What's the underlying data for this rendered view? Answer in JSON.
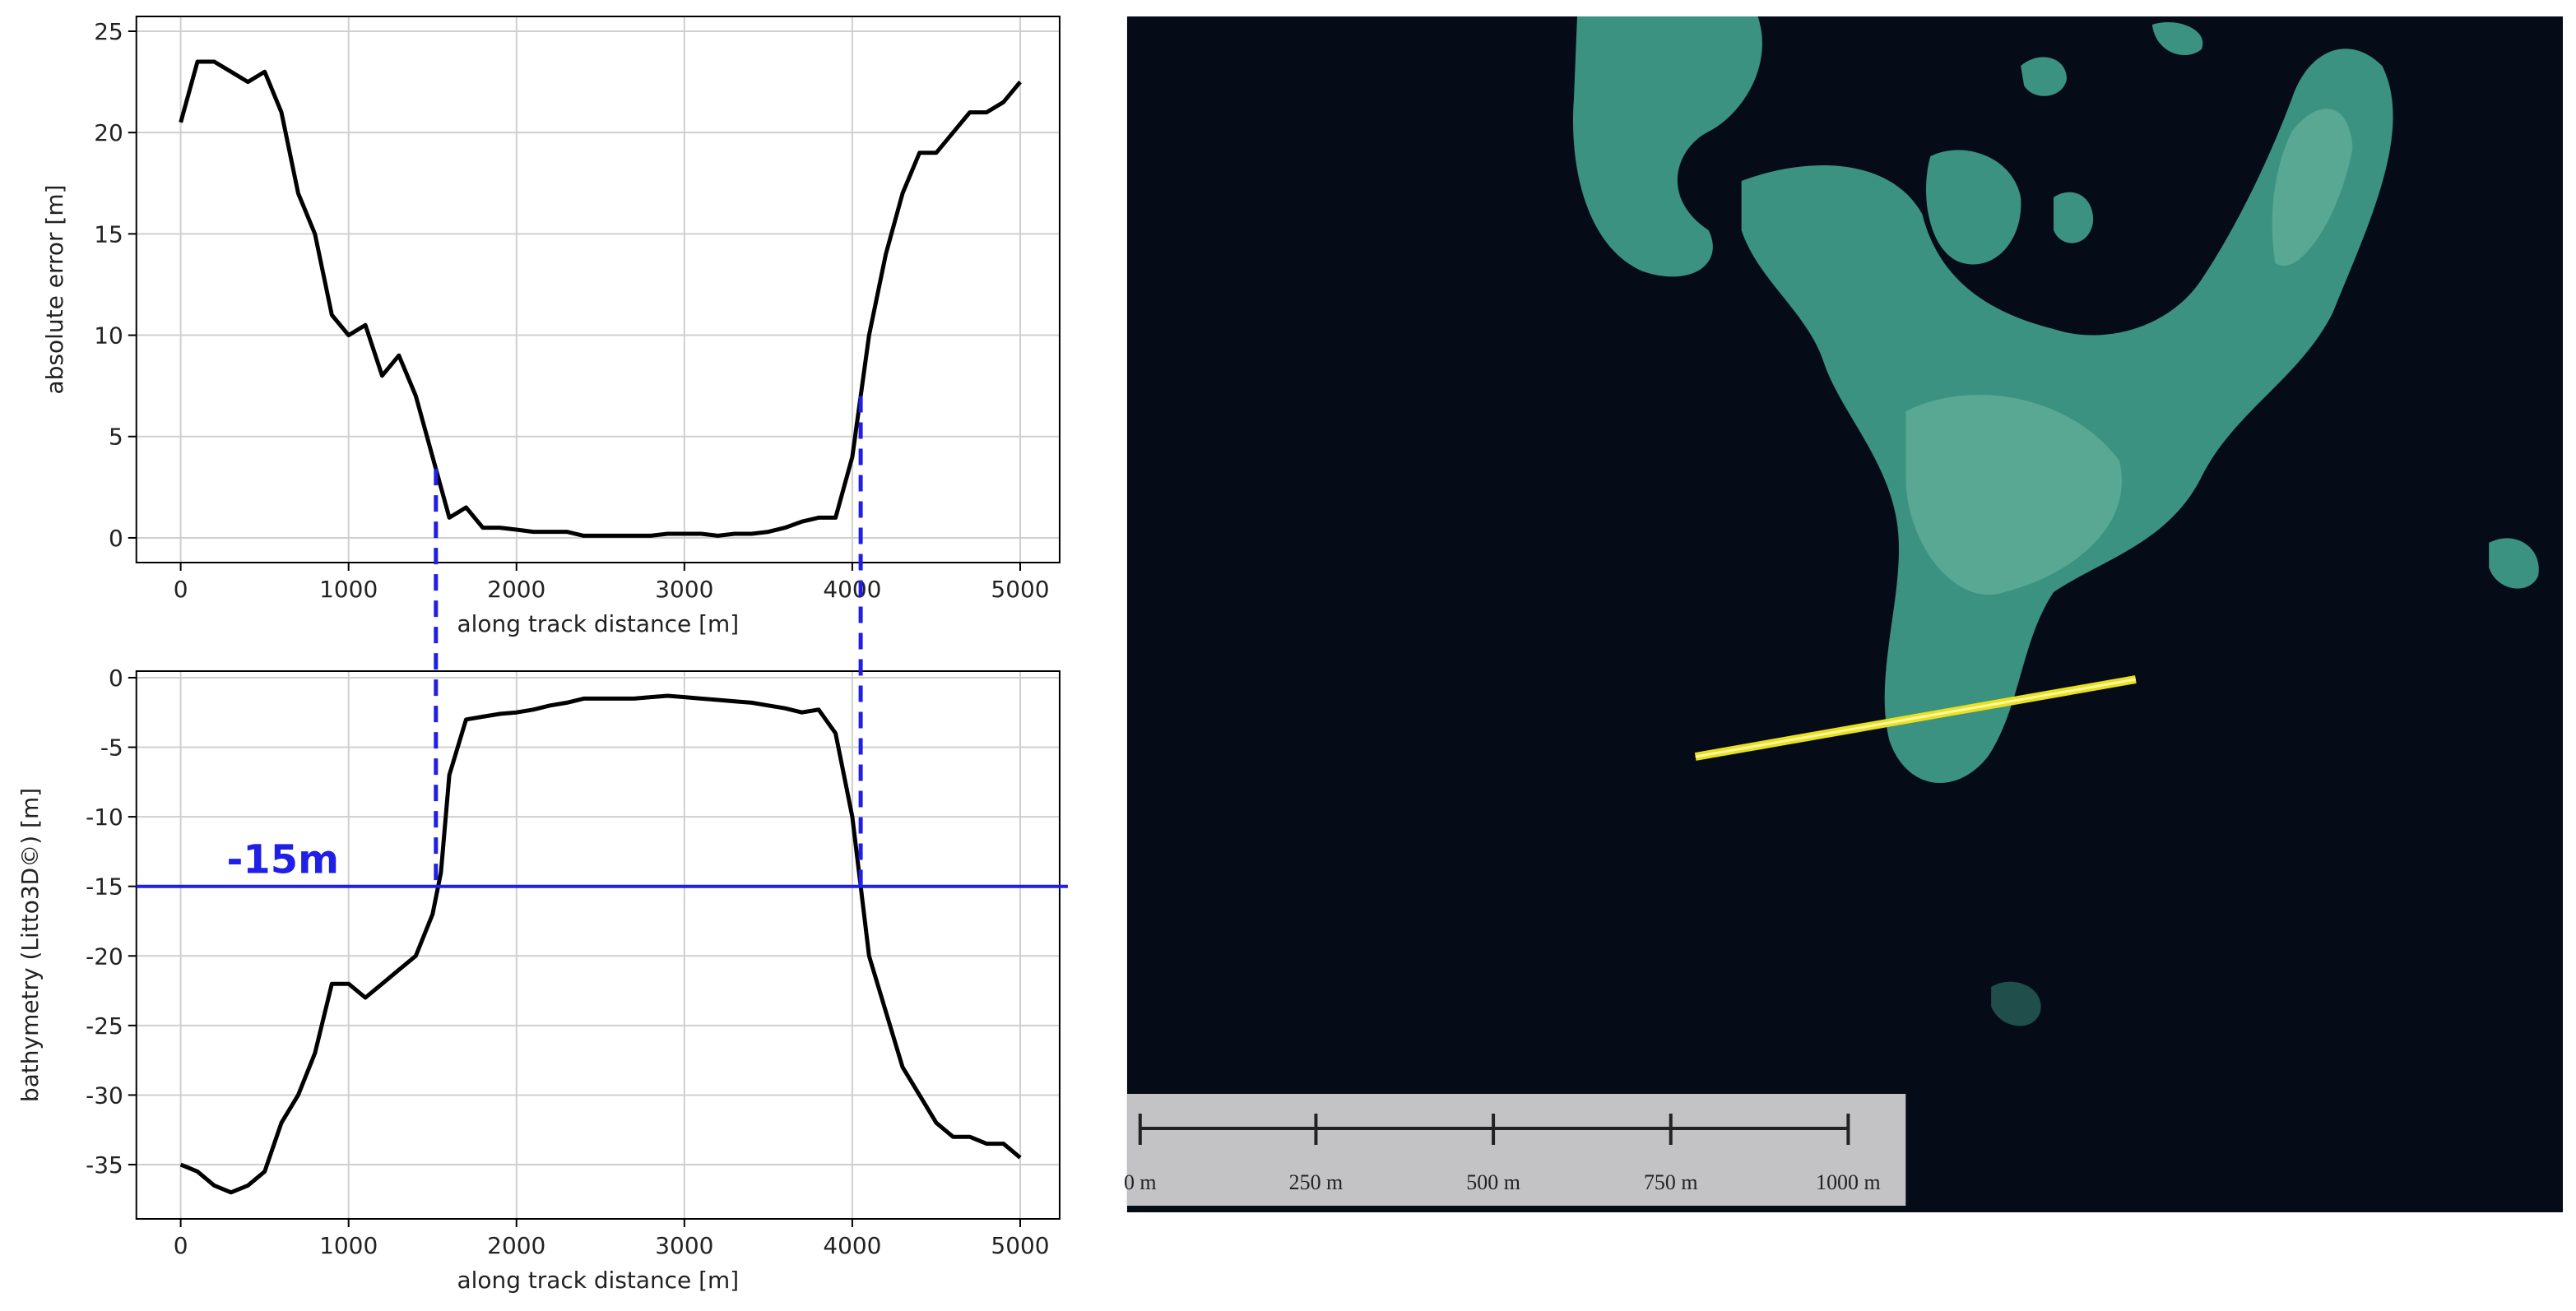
{
  "chart_data": [
    {
      "type": "line",
      "xlabel": "along track distance [m]",
      "ylabel": "absolute error [m]",
      "x": [
        0,
        100,
        200,
        300,
        400,
        500,
        600,
        700,
        800,
        900,
        1000,
        1100,
        1200,
        1300,
        1400,
        1500,
        1600,
        1700,
        1800,
        1900,
        2000,
        2100,
        2200,
        2300,
        2400,
        2500,
        2600,
        2700,
        2800,
        2900,
        3000,
        3100,
        3200,
        3300,
        3400,
        3500,
        3600,
        3700,
        3800,
        3900,
        4000,
        4100,
        4200,
        4300,
        4400,
        4500,
        4600,
        4700,
        4800,
        4900,
        5000
      ],
      "values": [
        20.5,
        23.5,
        23.5,
        23,
        22.5,
        23,
        21,
        17,
        15,
        11,
        10,
        10.5,
        8,
        9,
        7,
        4,
        1,
        1.5,
        0.5,
        0.5,
        0.4,
        0.3,
        0.3,
        0.3,
        0.1,
        0.1,
        0.1,
        0.1,
        0.1,
        0.2,
        0.2,
        0.2,
        0.1,
        0.2,
        0.2,
        0.3,
        0.5,
        0.8,
        1,
        1,
        4,
        10,
        14,
        17,
        19,
        19,
        20,
        21,
        21,
        21.5,
        22.5
      ],
      "color": "#000000",
      "xlim": [
        -264,
        5235
      ],
      "ylim": [
        -1.22,
        25.73
      ],
      "xticks": [
        0,
        1000,
        2000,
        3000,
        4000,
        5000
      ],
      "yticks": [
        0,
        5,
        10,
        15,
        20,
        25
      ],
      "grid": true,
      "vlines": [
        1520,
        4050
      ],
      "vline_color": "#1f1fe6"
    },
    {
      "type": "line",
      "xlabel": "along track distance [m]",
      "ylabel": "bathymetry (Litto3D©) [m]",
      "x": [
        0,
        100,
        200,
        300,
        400,
        500,
        600,
        700,
        800,
        900,
        1000,
        1100,
        1200,
        1300,
        1400,
        1500,
        1550,
        1600,
        1700,
        1800,
        1900,
        2000,
        2100,
        2200,
        2300,
        2400,
        2500,
        2600,
        2700,
        2800,
        2900,
        3000,
        3100,
        3200,
        3300,
        3400,
        3500,
        3600,
        3700,
        3800,
        3900,
        4000,
        4050,
        4100,
        4200,
        4300,
        4400,
        4500,
        4600,
        4700,
        4800,
        4900,
        5000
      ],
      "values": [
        -35,
        -35.5,
        -36.5,
        -37,
        -36.5,
        -35.5,
        -32,
        -30,
        -27,
        -22,
        -22,
        -23,
        -22,
        -21,
        -20,
        -17,
        -14,
        -7,
        -3,
        -2.8,
        -2.6,
        -2.5,
        -2.3,
        -2,
        -1.8,
        -1.5,
        -1.5,
        -1.5,
        -1.5,
        -1.4,
        -1.3,
        -1.4,
        -1.5,
        -1.6,
        -1.7,
        -1.8,
        -2,
        -2.2,
        -2.5,
        -2.3,
        -4,
        -10,
        -15,
        -20,
        -24,
        -28,
        -30,
        -32,
        -33,
        -33,
        -33.5,
        -33.5,
        -34.5
      ],
      "color": "#000000",
      "xlim": [
        -264,
        5235
      ],
      "ylim": [
        -38.9,
        0.47
      ],
      "xticks": [
        0,
        1000,
        2000,
        3000,
        4000,
        5000
      ],
      "yticks": [
        0,
        -5,
        -10,
        -15,
        -20,
        -25,
        -30,
        -35
      ],
      "grid": true,
      "vlines": [
        1520,
        4050
      ],
      "vline_color": "#1f1fe6",
      "hline": -15,
      "hline_color": "#1f1fe6",
      "annotation": "-15m"
    }
  ],
  "map": {
    "scale_labels": [
      "0 m",
      "250 m",
      "500 m",
      "750 m",
      "1000 m"
    ]
  }
}
